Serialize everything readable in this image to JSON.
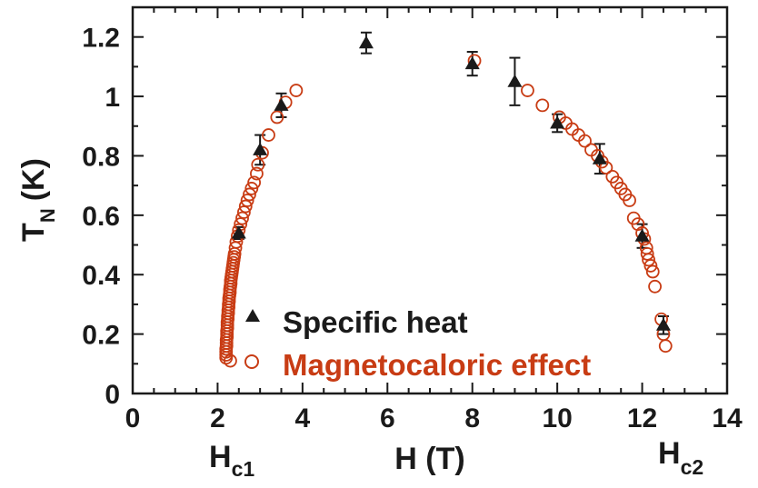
{
  "chart_data": {
    "type": "scatter",
    "title": "",
    "xlabel": "H (T)",
    "ylabel_main": "T",
    "ylabel_sub": "N",
    "ylabel_unit": "(K)",
    "xlim": [
      0,
      14
    ],
    "ylim": [
      0,
      1.3
    ],
    "x_ticks": [
      0,
      2,
      4,
      6,
      8,
      10,
      12,
      14
    ],
    "x_tick_labels": [
      "0",
      "2",
      "4",
      "6",
      "8",
      "10",
      "12",
      "14"
    ],
    "y_ticks": [
      0,
      0.2,
      0.4,
      0.6,
      0.8,
      1.0,
      1.2
    ],
    "y_tick_labels": [
      "0",
      "0.2",
      "0.4",
      "0.6",
      "0.8",
      "1",
      "1.2"
    ],
    "grid": false,
    "legend_position": "bottom-center",
    "annotations": [
      {
        "main": "H",
        "sub": "c1",
        "x": 2.2
      },
      {
        "main": "H",
        "sub": "c2",
        "x": 12.5
      }
    ],
    "colors": {
      "specific_heat": "#1a1a1a",
      "magnetocaloric": "#c83c14",
      "axes": "#1a1a1a"
    },
    "series": [
      {
        "name": "Specific heat",
        "marker": "triangle",
        "points": [
          {
            "x": 2.5,
            "y": 0.54,
            "err": 0.02
          },
          {
            "x": 3.0,
            "y": 0.82,
            "err": 0.05
          },
          {
            "x": 3.5,
            "y": 0.97,
            "err": 0.04
          },
          {
            "x": 5.5,
            "y": 1.18,
            "err": 0.035
          },
          {
            "x": 8.0,
            "y": 1.11,
            "err": 0.04
          },
          {
            "x": 9.0,
            "y": 1.05,
            "err": 0.08
          },
          {
            "x": 10.0,
            "y": 0.91,
            "err": 0.03
          },
          {
            "x": 11.0,
            "y": 0.79,
            "err": 0.05
          },
          {
            "x": 12.0,
            "y": 0.53,
            "err": 0.04
          },
          {
            "x": 12.5,
            "y": 0.23,
            "err": 0.03
          }
        ]
      },
      {
        "name": "Magnetocaloric effect",
        "marker": "circle",
        "points": [
          {
            "x": 2.2,
            "y": 0.12
          },
          {
            "x": 2.2,
            "y": 0.13
          },
          {
            "x": 2.2,
            "y": 0.14
          },
          {
            "x": 2.2,
            "y": 0.15
          },
          {
            "x": 2.21,
            "y": 0.16
          },
          {
            "x": 2.21,
            "y": 0.17
          },
          {
            "x": 2.21,
            "y": 0.18
          },
          {
            "x": 2.22,
            "y": 0.19
          },
          {
            "x": 2.22,
            "y": 0.2
          },
          {
            "x": 2.22,
            "y": 0.21
          },
          {
            "x": 2.23,
            "y": 0.22
          },
          {
            "x": 2.23,
            "y": 0.23
          },
          {
            "x": 2.23,
            "y": 0.24
          },
          {
            "x": 2.24,
            "y": 0.25
          },
          {
            "x": 2.24,
            "y": 0.26
          },
          {
            "x": 2.25,
            "y": 0.27
          },
          {
            "x": 2.25,
            "y": 0.28
          },
          {
            "x": 2.26,
            "y": 0.29
          },
          {
            "x": 2.26,
            "y": 0.3
          },
          {
            "x": 2.27,
            "y": 0.31
          },
          {
            "x": 2.27,
            "y": 0.32
          },
          {
            "x": 2.28,
            "y": 0.33
          },
          {
            "x": 2.29,
            "y": 0.34
          },
          {
            "x": 2.29,
            "y": 0.35
          },
          {
            "x": 2.3,
            "y": 0.36
          },
          {
            "x": 2.31,
            "y": 0.37
          },
          {
            "x": 2.31,
            "y": 0.38
          },
          {
            "x": 2.32,
            "y": 0.39
          },
          {
            "x": 2.33,
            "y": 0.4
          },
          {
            "x": 2.34,
            "y": 0.41
          },
          {
            "x": 2.35,
            "y": 0.42
          },
          {
            "x": 2.36,
            "y": 0.43
          },
          {
            "x": 2.37,
            "y": 0.44
          },
          {
            "x": 2.38,
            "y": 0.45
          },
          {
            "x": 2.39,
            "y": 0.46
          },
          {
            "x": 2.4,
            "y": 0.47
          },
          {
            "x": 2.42,
            "y": 0.49
          },
          {
            "x": 2.44,
            "y": 0.51
          },
          {
            "x": 2.47,
            "y": 0.53
          },
          {
            "x": 2.5,
            "y": 0.55
          },
          {
            "x": 2.54,
            "y": 0.57
          },
          {
            "x": 2.58,
            "y": 0.59
          },
          {
            "x": 2.62,
            "y": 0.61
          },
          {
            "x": 2.66,
            "y": 0.63
          },
          {
            "x": 2.7,
            "y": 0.65
          },
          {
            "x": 2.75,
            "y": 0.67
          },
          {
            "x": 2.8,
            "y": 0.69
          },
          {
            "x": 2.86,
            "y": 0.71
          },
          {
            "x": 2.92,
            "y": 0.74
          },
          {
            "x": 2.95,
            "y": 0.77
          },
          {
            "x": 3.05,
            "y": 0.81
          },
          {
            "x": 3.2,
            "y": 0.87
          },
          {
            "x": 3.4,
            "y": 0.93
          },
          {
            "x": 3.6,
            "y": 0.98
          },
          {
            "x": 3.85,
            "y": 1.02
          },
          {
            "x": 2.3,
            "y": 0.11
          },
          {
            "x": 8.05,
            "y": 1.12
          },
          {
            "x": 9.3,
            "y": 1.02
          },
          {
            "x": 9.65,
            "y": 0.97
          },
          {
            "x": 10.05,
            "y": 0.93
          },
          {
            "x": 10.2,
            "y": 0.91
          },
          {
            "x": 10.35,
            "y": 0.89
          },
          {
            "x": 10.5,
            "y": 0.87
          },
          {
            "x": 10.65,
            "y": 0.85
          },
          {
            "x": 10.8,
            "y": 0.82
          },
          {
            "x": 10.95,
            "y": 0.8
          },
          {
            "x": 11.05,
            "y": 0.78
          },
          {
            "x": 11.15,
            "y": 0.76
          },
          {
            "x": 11.3,
            "y": 0.73
          },
          {
            "x": 11.4,
            "y": 0.71
          },
          {
            "x": 11.5,
            "y": 0.69
          },
          {
            "x": 11.6,
            "y": 0.67
          },
          {
            "x": 11.7,
            "y": 0.65
          },
          {
            "x": 11.8,
            "y": 0.59
          },
          {
            "x": 11.9,
            "y": 0.57
          },
          {
            "x": 12.0,
            "y": 0.54
          },
          {
            "x": 12.05,
            "y": 0.52
          },
          {
            "x": 12.1,
            "y": 0.49
          },
          {
            "x": 12.12,
            "y": 0.47
          },
          {
            "x": 12.15,
            "y": 0.45
          },
          {
            "x": 12.2,
            "y": 0.43
          },
          {
            "x": 12.25,
            "y": 0.41
          },
          {
            "x": 12.3,
            "y": 0.36
          },
          {
            "x": 12.45,
            "y": 0.25
          },
          {
            "x": 12.5,
            "y": 0.2
          },
          {
            "x": 12.55,
            "y": 0.16
          }
        ]
      }
    ]
  }
}
